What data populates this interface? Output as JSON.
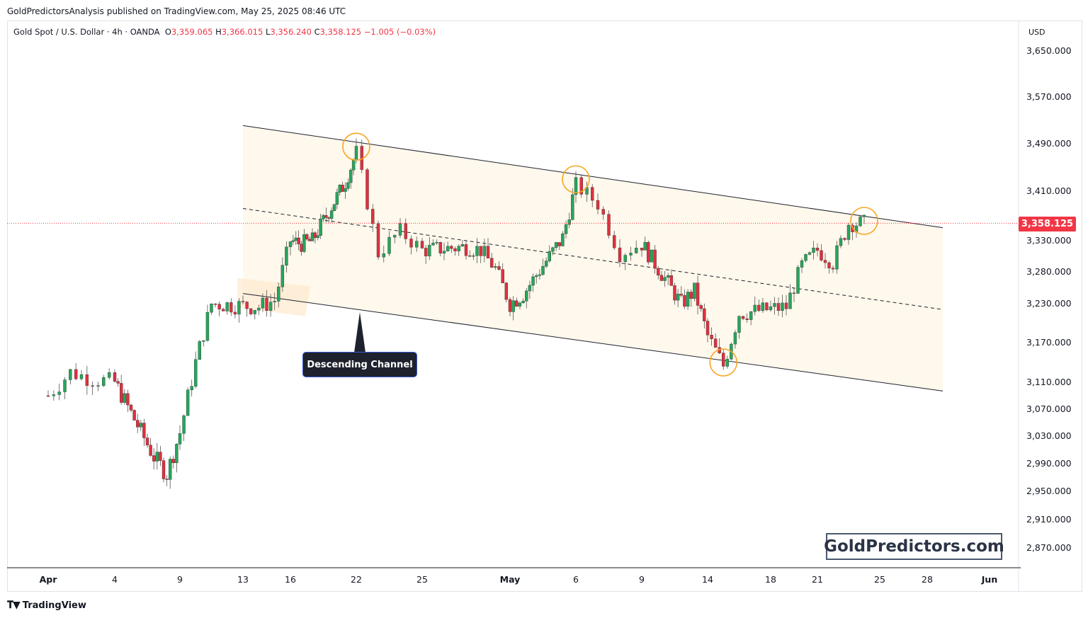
{
  "publisher_line": "GoldPredictorsAnalysis published on TradingView.com, May 25, 2025 08:46 UTC",
  "legend": {
    "symbol": "Gold Spot / U.S. Dollar · 4h · OANDA",
    "o_label": "O",
    "o_value": "3,359.065",
    "h_label": "H",
    "h_value": "3,366.015",
    "l_label": "L",
    "l_value": "3,356.240",
    "c_label": "C",
    "c_value": "3,358.125",
    "change": "−1.005 (−0.03%)"
  },
  "currency_label": "USD",
  "last_price_label": "3,358.125",
  "annotation_label": "Descending Channel",
  "watermark": "GoldPredictors.com",
  "footer_brand": "TradingView",
  "colors": {
    "up": "#26a65b",
    "down": "#e0303e",
    "last_price": "#f23645",
    "highlight_circle": "#f5a623",
    "channel_fill": "#fff8ec"
  },
  "chart_data": {
    "type": "candlestick",
    "timeframe": "4h",
    "y_axis_ticks": [
      3650,
      3570,
      3490,
      3410,
      3330,
      3280,
      3230,
      3170,
      3110,
      3070,
      3030,
      2990,
      2950,
      2910,
      2870
    ],
    "y_axis_tick_labels": [
      "3,650.000",
      "3,570.000",
      "3,490.000",
      "3,410.000",
      "3,330.000",
      "3,280.000",
      "3,230.000",
      "3,170.000",
      "3,110.000",
      "3,070.000",
      "3,030.000",
      "2,990.000",
      "2,950.000",
      "2,910.000",
      "2,870.000"
    ],
    "x_axis_tick_labels": [
      "Apr",
      "4",
      "9",
      "13",
      "16",
      "22",
      "25",
      "May",
      "6",
      "9",
      "14",
      "18",
      "21",
      "25",
      "28",
      "Jun"
    ],
    "last_price": 3358.125,
    "close_path": [
      {
        "date": "Apr 1",
        "close": 3090
      },
      {
        "date": "Apr 2",
        "close": 3125
      },
      {
        "date": "Apr 3",
        "close": 3115
      },
      {
        "date": "Apr 4",
        "close": 3110
      },
      {
        "date": "Apr 7",
        "close": 3000
      },
      {
        "date": "Apr 8",
        "close": 2975
      },
      {
        "date": "Apr 9",
        "close": 3035
      },
      {
        "date": "Apr 10",
        "close": 3140
      },
      {
        "date": "Apr 11",
        "close": 3230
      },
      {
        "date": "Apr 14",
        "close": 3225
      },
      {
        "date": "Apr 15",
        "close": 3235
      },
      {
        "date": "Apr 16",
        "close": 3330
      },
      {
        "date": "Apr 17",
        "close": 3325
      },
      {
        "date": "Apr 18",
        "close": 3330
      },
      {
        "date": "Apr 21",
        "close": 3425
      },
      {
        "date": "Apr 22",
        "close": 3475
      },
      {
        "date": "Apr 23",
        "close": 3310
      },
      {
        "date": "Apr 24",
        "close": 3345
      },
      {
        "date": "Apr 25",
        "close": 3315
      },
      {
        "date": "Apr 28",
        "close": 3320
      },
      {
        "date": "Apr 29",
        "close": 3315
      },
      {
        "date": "Apr 30",
        "close": 3285
      },
      {
        "date": "May 1",
        "close": 3230
      },
      {
        "date": "May 2",
        "close": 3245
      },
      {
        "date": "May 5",
        "close": 3335
      },
      {
        "date": "May 6",
        "close": 3420
      },
      {
        "date": "May 7",
        "close": 3390
      },
      {
        "date": "May 8",
        "close": 3310
      },
      {
        "date": "May 9",
        "close": 3325
      },
      {
        "date": "May 12",
        "close": 3230
      },
      {
        "date": "May 13",
        "close": 3250
      },
      {
        "date": "May 14",
        "close": 3180
      },
      {
        "date": "May 15",
        "close": 3135
      },
      {
        "date": "May 16",
        "close": 3215
      },
      {
        "date": "May 19",
        "close": 3225
      },
      {
        "date": "May 20",
        "close": 3290
      },
      {
        "date": "May 21",
        "close": 3315
      },
      {
        "date": "May 22",
        "close": 3295
      },
      {
        "date": "May 23",
        "close": 3358
      }
    ],
    "channel": {
      "upper": [
        {
          "date": "Apr 13",
          "price": 3521
        },
        {
          "date": "May 29",
          "price": 3351
        }
      ],
      "lower": [
        {
          "date": "Apr 13",
          "price": 3246
        },
        {
          "date": "May 29",
          "price": 3097
        }
      ],
      "midline": [
        {
          "date": "Apr 13",
          "price": 3382
        },
        {
          "date": "May 29",
          "price": 3221
        }
      ]
    },
    "highlighted_points": [
      {
        "date": "Apr 22",
        "price": 3485
      },
      {
        "date": "May 6",
        "price": 3430
      },
      {
        "date": "May 15",
        "price": 3140
      },
      {
        "date": "May 24",
        "price": 3362
      }
    ]
  }
}
